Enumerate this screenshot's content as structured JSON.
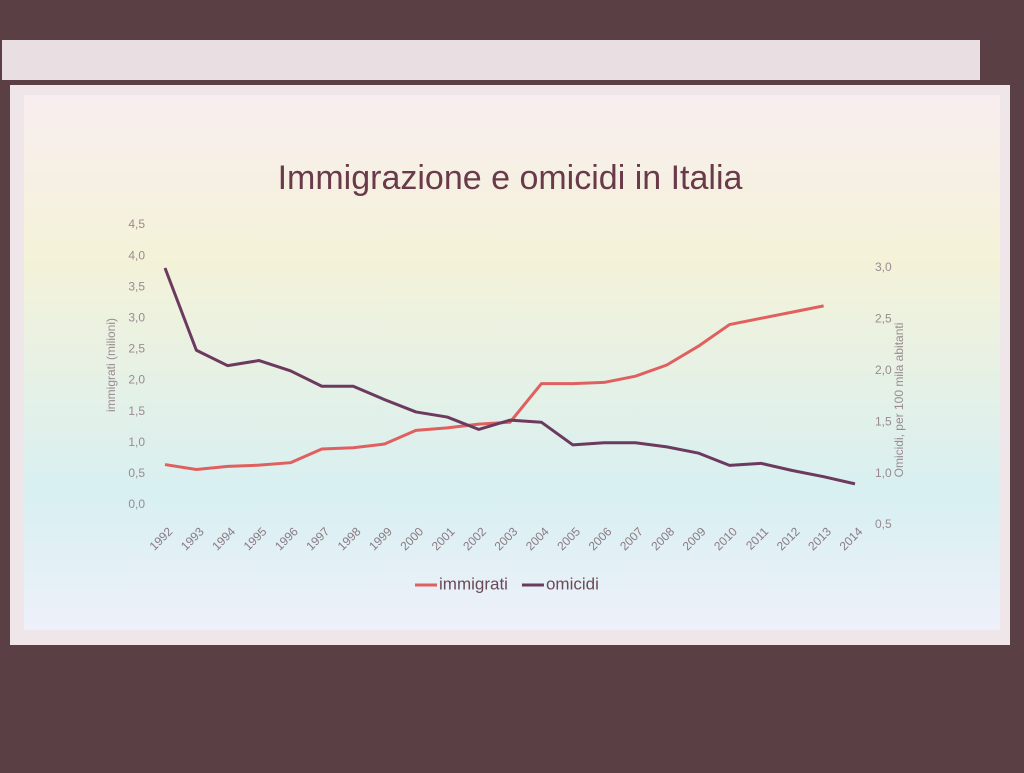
{
  "chart_data": {
    "type": "line",
    "title": "Immigrazione e omicidi in Italia",
    "y_label": "immigrati (milioni)",
    "y2_label": "Omicidi, per 100 mila abitanti",
    "categories": [
      "1992",
      "1993",
      "1994",
      "1995",
      "1996",
      "1997",
      "1998",
      "1999",
      "2000",
      "2001",
      "2002",
      "2003",
      "2004",
      "2005",
      "2006",
      "2007",
      "2008",
      "2009",
      "2010",
      "2011",
      "2012",
      "2013",
      "2014"
    ],
    "series": [
      {
        "name": "immigrati",
        "color": "#e0605f",
        "values": [
          0.65,
          0.57,
          0.62,
          0.64,
          0.68,
          0.9,
          0.92,
          0.98,
          1.2,
          1.24,
          1.3,
          1.33,
          1.95,
          1.95,
          1.97,
          2.07,
          2.25,
          2.55,
          2.9,
          3.0,
          3.1,
          3.2,
          null
        ]
      },
      {
        "name": "omicidi",
        "color": "#6b3a5e",
        "axis": "y2",
        "values": [
          3.0,
          2.2,
          2.05,
          2.1,
          2.0,
          1.85,
          1.85,
          1.72,
          1.6,
          1.55,
          1.43,
          1.52,
          1.5,
          1.28,
          1.3,
          1.3,
          1.26,
          1.2,
          1.08,
          1.1,
          1.03,
          0.97,
          0.9
        ]
      }
    ],
    "ylim": [
      0,
      4.5
    ],
    "yticks": [
      {
        "value": 0,
        "label": "0,0"
      },
      {
        "value": 0.5,
        "label": "0,5"
      },
      {
        "value": 1,
        "label": "1,0"
      },
      {
        "value": 1.5,
        "label": "1,5"
      },
      {
        "value": 2,
        "label": "2,0"
      },
      {
        "value": 2.5,
        "label": "2,5"
      },
      {
        "value": 3,
        "label": "3,0"
      },
      {
        "value": 3.5,
        "label": "3,5"
      },
      {
        "value": 4,
        "label": "4,0"
      },
      {
        "value": 4.5,
        "label": "4,5"
      }
    ],
    "y2lim": [
      0.5,
      3.0
    ],
    "y2ticks": [
      {
        "value": 0.5,
        "label": "0,5"
      },
      {
        "value": 1,
        "label": "1,0"
      },
      {
        "value": 1.5,
        "label": "1,5"
      },
      {
        "value": 2,
        "label": "2,0"
      },
      {
        "value": 2.5,
        "label": "2,5"
      },
      {
        "value": 3,
        "label": "3,0"
      }
    ],
    "grid": false,
    "legend": "bottom"
  }
}
